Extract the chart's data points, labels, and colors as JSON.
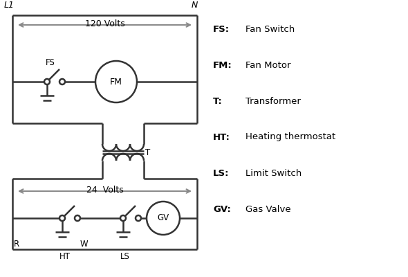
{
  "bg_color": "#ffffff",
  "line_color": "#333333",
  "arrow_color": "#888888",
  "lw": 1.8,
  "legend": [
    [
      "FS:",
      "Fan Switch"
    ],
    [
      "FM:",
      "Fan Motor"
    ],
    [
      "T:",
      "Transformer"
    ],
    [
      "HT:",
      "Heating thermostat"
    ],
    [
      "LS:",
      "Limit Switch"
    ],
    [
      "GV:",
      "Gas Valve"
    ]
  ]
}
